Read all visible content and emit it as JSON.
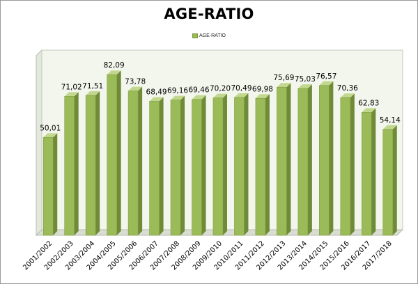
{
  "chart_data": {
    "type": "bar",
    "title": "AGE-RATIO",
    "legend": {
      "position": "top",
      "entries": [
        "AGE-RATIO"
      ]
    },
    "categories": [
      "2001/2002",
      "2002/2003",
      "2003/2004",
      "2004/2005",
      "2005/2006",
      "2006/2007",
      "2007/2008",
      "2008/2009",
      "2009/2010",
      "2010/2011",
      "2011/2012",
      "2012/2013",
      "2013/2014",
      "2014/2015",
      "2015/2016",
      "2016/2017",
      "2017/2018"
    ],
    "series": [
      {
        "name": "AGE-RATIO",
        "values": [
          50.01,
          71.02,
          71.51,
          82.09,
          73.78,
          68.49,
          69.16,
          69.46,
          70.2,
          70.49,
          69.98,
          75.69,
          75.03,
          76.57,
          70.36,
          62.83,
          54.14
        ],
        "labels": [
          "50,01",
          "71,02",
          "71,51",
          "82,09",
          "73,78",
          "68,49",
          "69,16",
          "69,46",
          "70,20",
          "70,49",
          "69,98",
          "75,69",
          "75,03",
          "76,57",
          "70,36",
          "62,83",
          "54,14"
        ]
      }
    ],
    "ylim": [
      0,
      90
    ],
    "grid": false,
    "colors": {
      "bar": "#9bbb59",
      "bar_side": "#6f8b38",
      "bar_top": "#c3d88f",
      "plot_bg": "#f3f6ec",
      "wall": "#e3e8dc"
    }
  }
}
